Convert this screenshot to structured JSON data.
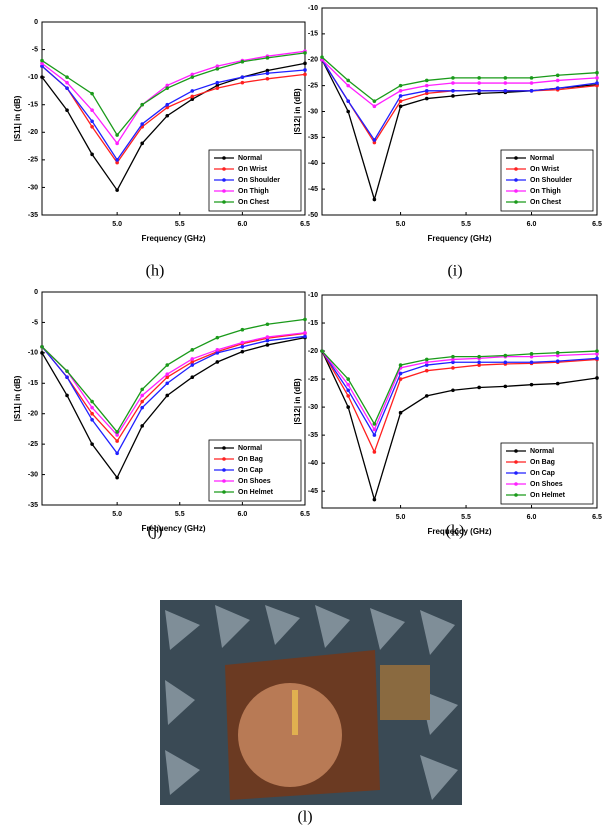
{
  "chart_data": [
    {
      "type": "line",
      "caption": "(h)",
      "xlabel": "Frequency (GHz)",
      "ylabel": "|S11| in (dB)",
      "x": [
        4.4,
        4.6,
        4.8,
        5.0,
        5.2,
        5.4,
        5.6,
        5.8,
        6.0,
        6.2,
        6.5
      ],
      "xlim": [
        4.4,
        6.5
      ],
      "xticks": [
        {
          "value": 5,
          "label": "5.0"
        },
        5.5,
        {
          "value": 6,
          "label": "6.0"
        },
        6.5
      ],
      "ylim": [
        -35,
        0
      ],
      "yticks": [
        0,
        -5,
        -10,
        -15,
        -20,
        -25,
        -30,
        -35
      ],
      "legend": "lower right",
      "series": [
        {
          "name": "Normal",
          "color": "#000000",
          "values": [
            -10,
            -16,
            -24,
            -30.5,
            -22,
            -17,
            -14,
            -11.5,
            -10,
            -8.8,
            -7.5
          ]
        },
        {
          "name": "On Wrist",
          "color": "#ff2020",
          "values": [
            -8,
            -12,
            -19,
            -25.5,
            -19,
            -15.5,
            -13.5,
            -12,
            -11,
            -10.3,
            -9.5
          ]
        },
        {
          "name": "On Shoulder",
          "color": "#2020ff",
          "values": [
            -8,
            -12,
            -18,
            -25,
            -18.5,
            -15,
            -12.5,
            -11,
            -10,
            -9.3,
            -8.7
          ]
        },
        {
          "name": "On Thigh",
          "color": "#ff20ff",
          "values": [
            -7.5,
            -11,
            -16,
            -22,
            -15,
            -11.5,
            -9.5,
            -8,
            -7,
            -6.2,
            -5.3
          ]
        },
        {
          "name": "On Chest",
          "color": "#1a9a1a",
          "values": [
            -7,
            -10,
            -13,
            -20.5,
            -15,
            -12,
            -10,
            -8.5,
            -7.2,
            -6.5,
            -5.6
          ]
        }
      ]
    },
    {
      "type": "line",
      "caption": "(i)",
      "xlabel": "Frequency (GHz)",
      "ylabel": "|S12| in (dB)",
      "x": [
        4.4,
        4.6,
        4.8,
        5.0,
        5.2,
        5.4,
        5.6,
        5.8,
        6.0,
        6.2,
        6.5
      ],
      "xlim": [
        4.4,
        6.5
      ],
      "xticks": [
        {
          "value": 5,
          "label": "5.0"
        },
        5.5,
        {
          "value": 6,
          "label": "6.0"
        },
        6.5
      ],
      "ylim": [
        -50,
        -10
      ],
      "yticks": [
        -10,
        -15,
        -20,
        -25,
        -30,
        -35,
        -40,
        -45,
        -50
      ],
      "legend": "lower right",
      "series": [
        {
          "name": "Normal",
          "color": "#000000",
          "values": [
            -20,
            -30,
            -47,
            -29,
            -27.5,
            -27,
            -26.5,
            -26.3,
            -26,
            -25.5,
            -24.8
          ]
        },
        {
          "name": "On Wrist",
          "color": "#ff2020",
          "values": [
            -20,
            -28,
            -36,
            -28,
            -26.5,
            -26,
            -26,
            -26,
            -26,
            -25.8,
            -25
          ]
        },
        {
          "name": "On Shoulder",
          "color": "#2020ff",
          "values": [
            -20,
            -28,
            -35.5,
            -27,
            -26,
            -26,
            -26,
            -26,
            -26,
            -25.5,
            -24.5
          ]
        },
        {
          "name": "On Thigh",
          "color": "#ff20ff",
          "values": [
            -20,
            -25,
            -29,
            -26,
            -25,
            -24.5,
            -24.5,
            -24.5,
            -24.5,
            -24,
            -23.5
          ]
        },
        {
          "name": "On Chest",
          "color": "#1a9a1a",
          "values": [
            -19.5,
            -24,
            -28,
            -25,
            -24,
            -23.5,
            -23.5,
            -23.5,
            -23.5,
            -23,
            -22.5
          ]
        }
      ]
    },
    {
      "type": "line",
      "caption": "(j)",
      "xlabel": "Frequency (GHz)",
      "ylabel": "|S11| in (dB)",
      "x": [
        4.4,
        4.6,
        4.8,
        5.0,
        5.2,
        5.4,
        5.6,
        5.8,
        6.0,
        6.2,
        6.5
      ],
      "xlim": [
        4.4,
        6.5
      ],
      "xticks": [
        {
          "value": 5,
          "label": "5.0"
        },
        5.5,
        {
          "value": 6,
          "label": "6.0"
        },
        6.5
      ],
      "ylim": [
        -35,
        0
      ],
      "yticks": [
        0,
        -5,
        -10,
        -15,
        -20,
        -25,
        -30,
        -35
      ],
      "legend": "lower right",
      "series": [
        {
          "name": "Normal",
          "color": "#000000",
          "values": [
            -10,
            -17,
            -25,
            -30.5,
            -22,
            -17,
            -14,
            -11.5,
            -9.8,
            -8.7,
            -7.5
          ]
        },
        {
          "name": "On Bag",
          "color": "#ff2020",
          "values": [
            -9,
            -14,
            -20,
            -24.5,
            -18,
            -14,
            -11.5,
            -9.8,
            -8.5,
            -7.6,
            -6.8
          ]
        },
        {
          "name": "On Cap",
          "color": "#2020ff",
          "values": [
            -9,
            -14,
            -21,
            -26.5,
            -19,
            -15,
            -12,
            -10,
            -9,
            -8,
            -7.3
          ]
        },
        {
          "name": "On Shoes",
          "color": "#ff20ff",
          "values": [
            -9,
            -13,
            -19,
            -23.5,
            -17,
            -13.5,
            -11,
            -9.5,
            -8.3,
            -7.4,
            -6.7
          ]
        },
        {
          "name": "On Helmet",
          "color": "#1a9a1a",
          "values": [
            -9,
            -13,
            -18,
            -23,
            -16,
            -12,
            -9.5,
            -7.5,
            -6.2,
            -5.3,
            -4.5
          ]
        }
      ]
    },
    {
      "type": "line",
      "caption": "(k)",
      "xlabel": "Frequency (GHz)",
      "ylabel": "|S12| in (dB)",
      "x": [
        4.4,
        4.6,
        4.8,
        5.0,
        5.2,
        5.4,
        5.6,
        5.8,
        6.0,
        6.2,
        6.5
      ],
      "xlim": [
        4.4,
        6.5
      ],
      "xticks": [
        {
          "value": 5,
          "label": "5.0"
        },
        5.5,
        {
          "value": 6,
          "label": "6.0"
        },
        6.5
      ],
      "ylim": [
        -48,
        -10
      ],
      "yticks": [
        -10,
        -15,
        -20,
        -25,
        -30,
        -35,
        -40,
        -45
      ],
      "legend": "lower right",
      "series": [
        {
          "name": "Normal",
          "color": "#000000",
          "values": [
            -20,
            -30,
            -46.5,
            -31,
            -28,
            -27,
            -26.5,
            -26.3,
            -26,
            -25.8,
            -24.8
          ]
        },
        {
          "name": "On Bag",
          "color": "#ff2020",
          "values": [
            -20,
            -28,
            -38,
            -25,
            -23.5,
            -23,
            -22.5,
            -22.3,
            -22.2,
            -22,
            -21.5
          ]
        },
        {
          "name": "On Cap",
          "color": "#2020ff",
          "values": [
            -20,
            -27,
            -35,
            -24,
            -22.5,
            -22,
            -22,
            -22,
            -22,
            -21.8,
            -21.3
          ]
        },
        {
          "name": "On Shoes",
          "color": "#ff20ff",
          "values": [
            -20,
            -26,
            -34,
            -23,
            -22,
            -21.5,
            -21.3,
            -21,
            -21,
            -20.8,
            -20.5
          ]
        },
        {
          "name": "On Helmet",
          "color": "#1a9a1a",
          "values": [
            -20,
            -25,
            -33,
            -22.5,
            -21.5,
            -21,
            -21,
            -20.8,
            -20.5,
            -20.3,
            -20
          ]
        }
      ]
    }
  ],
  "photo": {
    "caption": "(l)"
  }
}
